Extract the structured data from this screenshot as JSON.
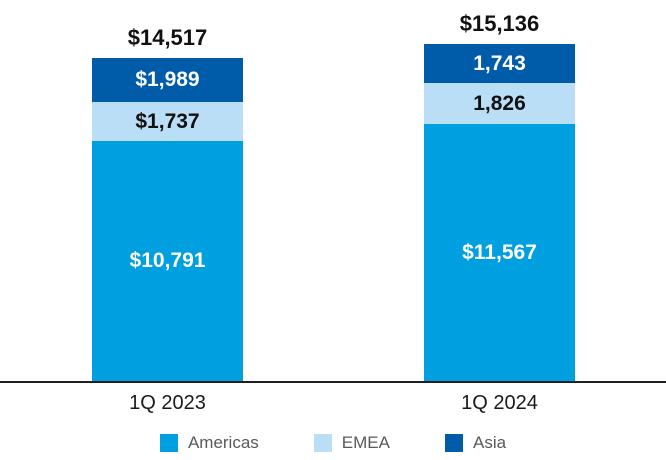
{
  "chart_data": {
    "type": "bar",
    "subtype": "stacked",
    "title": "",
    "categories": [
      "1Q 2023",
      "1Q 2024"
    ],
    "series": [
      {
        "name": "Americas",
        "color": "#009FE0",
        "label_color": "#FFFFFF",
        "values": [
          10791,
          11567
        ],
        "value_labels": [
          "$10,791",
          "$11,567"
        ]
      },
      {
        "name": "EMEA",
        "color": "#BBDEF7",
        "label_color": "#111111",
        "values": [
          1737,
          1826
        ],
        "value_labels": [
          "$1,737",
          "1,826"
        ]
      },
      {
        "name": "Asia",
        "color": "#005CA9",
        "label_color": "#FFFFFF",
        "values": [
          1989,
          1743
        ],
        "value_labels": [
          "$1,989",
          "1,743"
        ]
      }
    ],
    "totals": [
      14517,
      15136
    ],
    "total_labels": [
      "$14,517",
      "$15,136"
    ],
    "legend": [
      "Americas",
      "EMEA",
      "Asia"
    ],
    "legend_position": "bottom",
    "grid": false,
    "axis_color": "#1F1F1F",
    "background_color": "#FFFFFF"
  }
}
